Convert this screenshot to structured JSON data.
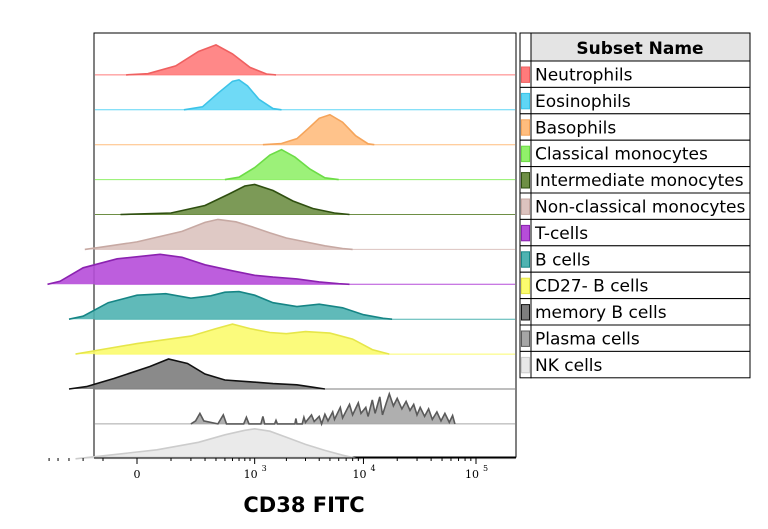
{
  "chart_data": {
    "type": "area",
    "xlabel": "CD38 FITC",
    "x_scale": "biexponential",
    "x_ticks": [
      {
        "value": 0,
        "base": "0",
        "exp": ""
      },
      {
        "value": 1000,
        "base": "10",
        "exp": "3"
      },
      {
        "value": 10000,
        "base": "10",
        "exp": "4"
      },
      {
        "value": 100000,
        "base": "10",
        "exp": "5"
      }
    ],
    "legend": {
      "title": "Subset Name",
      "placement": "right"
    },
    "series": [
      {
        "name": "Neutrophils",
        "color": "#ff7b7b",
        "line": "#ef6060",
        "points": [
          [
            -25,
            0
          ],
          [
            25,
            0.04
          ],
          [
            120,
            0.3
          ],
          [
            250,
            0.78
          ],
          [
            400,
            1
          ],
          [
            600,
            0.7
          ],
          [
            900,
            0.25
          ],
          [
            1300,
            0.03
          ],
          [
            1600,
            0
          ]
        ]
      },
      {
        "name": "Eosinophils",
        "color": "#5fd6f5",
        "line": "#3cc3e8",
        "points": [
          [
            160,
            0
          ],
          [
            280,
            0.1
          ],
          [
            420,
            0.55
          ],
          [
            600,
            0.95
          ],
          [
            700,
            1
          ],
          [
            850,
            0.8
          ],
          [
            1100,
            0.35
          ],
          [
            1500,
            0.04
          ],
          [
            1800,
            0
          ]
        ]
      },
      {
        "name": "Basophils",
        "color": "#ffbd7e",
        "line": "#f5a45a",
        "points": [
          [
            1200,
            0
          ],
          [
            1800,
            0.04
          ],
          [
            2500,
            0.2
          ],
          [
            3200,
            0.55
          ],
          [
            4000,
            0.88
          ],
          [
            5000,
            1
          ],
          [
            6500,
            0.75
          ],
          [
            8500,
            0.3
          ],
          [
            11000,
            0.03
          ],
          [
            12500,
            0
          ]
        ]
      },
      {
        "name": "Classical monocytes",
        "color": "#91f06a",
        "line": "#6cdc46",
        "points": [
          [
            500,
            0
          ],
          [
            700,
            0.08
          ],
          [
            1000,
            0.4
          ],
          [
            1400,
            0.82
          ],
          [
            1800,
            1
          ],
          [
            2400,
            0.75
          ],
          [
            3300,
            0.35
          ],
          [
            4500,
            0.06
          ],
          [
            6000,
            0
          ]
        ]
      },
      {
        "name": "Intermediate monocytes",
        "color": "#6e8f45",
        "line": "#2f4f10",
        "points": [
          [
            -40,
            0
          ],
          [
            100,
            0.05
          ],
          [
            300,
            0.3
          ],
          [
            550,
            0.68
          ],
          [
            800,
            0.95
          ],
          [
            1000,
            1
          ],
          [
            1500,
            0.8
          ],
          [
            2300,
            0.45
          ],
          [
            3500,
            0.2
          ],
          [
            5500,
            0.05
          ],
          [
            7500,
            0
          ]
        ]
      },
      {
        "name": "Non-classical monocytes",
        "color": "#dcc3bf",
        "line": "#c7a9a3",
        "points": [
          [
            -190,
            0
          ],
          [
            -120,
            0.06
          ],
          [
            0,
            0.25
          ],
          [
            150,
            0.6
          ],
          [
            300,
            0.9
          ],
          [
            420,
            1
          ],
          [
            650,
            0.92
          ],
          [
            950,
            0.75
          ],
          [
            1400,
            0.55
          ],
          [
            2000,
            0.38
          ],
          [
            3000,
            0.25
          ],
          [
            4500,
            0.12
          ],
          [
            6500,
            0.03
          ],
          [
            8000,
            0
          ]
        ]
      },
      {
        "name": "T-cells",
        "color": "#b64dd9",
        "line": "#8b22b0",
        "points": [
          [
            -520,
            0
          ],
          [
            -380,
            0.1
          ],
          [
            -200,
            0.55
          ],
          [
            -50,
            0.85
          ],
          [
            60,
            1
          ],
          [
            150,
            0.9
          ],
          [
            300,
            0.65
          ],
          [
            600,
            0.45
          ],
          [
            1000,
            0.3
          ],
          [
            1500,
            0.24
          ],
          [
            2500,
            0.18
          ],
          [
            4000,
            0.08
          ],
          [
            6000,
            0.02
          ],
          [
            7500,
            0
          ]
        ]
      },
      {
        "name": "B cells",
        "color": "#4fb3b1",
        "line": "#168585",
        "points": [
          [
            -300,
            0
          ],
          [
            -200,
            0.1
          ],
          [
            -80,
            0.55
          ],
          [
            0,
            0.8
          ],
          [
            80,
            0.85
          ],
          [
            200,
            0.7
          ],
          [
            350,
            0.78
          ],
          [
            500,
            0.9
          ],
          [
            700,
            0.92
          ],
          [
            1000,
            0.8
          ],
          [
            1500,
            0.55
          ],
          [
            2500,
            0.42
          ],
          [
            4000,
            0.5
          ],
          [
            6500,
            0.38
          ],
          [
            10000,
            0.15
          ],
          [
            15000,
            0.03
          ],
          [
            18000,
            0
          ]
        ]
      },
      {
        "name": "CD27- B cells",
        "color": "#fbfb6e",
        "line": "#e6e64a",
        "points": [
          [
            -250,
            0
          ],
          [
            -130,
            0.12
          ],
          [
            0,
            0.35
          ],
          [
            200,
            0.6
          ],
          [
            400,
            0.85
          ],
          [
            600,
            1
          ],
          [
            900,
            0.85
          ],
          [
            1400,
            0.72
          ],
          [
            2000,
            0.68
          ],
          [
            3000,
            0.75
          ],
          [
            5000,
            0.7
          ],
          [
            8000,
            0.5
          ],
          [
            12000,
            0.15
          ],
          [
            17000,
            0
          ]
        ]
      },
      {
        "name": "memory B cells",
        "color": "#7d7d7d",
        "line": "#111111",
        "points": [
          [
            -300,
            0
          ],
          [
            -180,
            0.08
          ],
          [
            -60,
            0.35
          ],
          [
            30,
            0.75
          ],
          [
            90,
            1
          ],
          [
            180,
            0.85
          ],
          [
            300,
            0.5
          ],
          [
            500,
            0.3
          ],
          [
            900,
            0.24
          ],
          [
            1500,
            0.18
          ],
          [
            2500,
            0.14
          ],
          [
            3500,
            0.06
          ],
          [
            4500,
            0
          ]
        ]
      },
      {
        "name": "Plasma cells",
        "color": "#a6a6a6",
        "line": "#5a5a5a",
        "points": [
          [
            200,
            0
          ],
          [
            230,
            0.1
          ],
          [
            260,
            0.35
          ],
          [
            290,
            0.1
          ],
          [
            420,
            0
          ],
          [
            480,
            0.3
          ],
          [
            520,
            0
          ],
          [
            780,
            0
          ],
          [
            830,
            0.22
          ],
          [
            880,
            0
          ],
          [
            1150,
            0
          ],
          [
            1200,
            0.25
          ],
          [
            1250,
            0
          ],
          [
            1550,
            0
          ],
          [
            1600,
            0.12
          ],
          [
            1650,
            0
          ],
          [
            2400,
            0
          ],
          [
            2450,
            0.18
          ],
          [
            2500,
            0
          ],
          [
            2800,
            0
          ],
          [
            2900,
            0.22
          ],
          [
            3000,
            0.05
          ],
          [
            3400,
            0.3
          ],
          [
            3600,
            0.08
          ],
          [
            4000,
            0.25
          ],
          [
            4200,
            0
          ],
          [
            4500,
            0.32
          ],
          [
            4800,
            0.1
          ],
          [
            5300,
            0.4
          ],
          [
            5500,
            0.15
          ],
          [
            6200,
            0.55
          ],
          [
            6500,
            0.2
          ],
          [
            7500,
            0.65
          ],
          [
            8000,
            0.3
          ],
          [
            9000,
            0.7
          ],
          [
            9500,
            0.35
          ],
          [
            10500,
            0.55
          ],
          [
            11000,
            0.25
          ],
          [
            12000,
            0.8
          ],
          [
            12700,
            0.35
          ],
          [
            14000,
            0.9
          ],
          [
            14800,
            0.3
          ],
          [
            16000,
            0.7
          ],
          [
            17000,
            1
          ],
          [
            18500,
            0.6
          ],
          [
            20000,
            0.85
          ],
          [
            22000,
            0.5
          ],
          [
            24000,
            0.75
          ],
          [
            26000,
            0.45
          ],
          [
            28000,
            0.65
          ],
          [
            30000,
            0.3
          ],
          [
            32000,
            0.55
          ],
          [
            35000,
            0.25
          ],
          [
            38000,
            0.5
          ],
          [
            41000,
            0.15
          ],
          [
            45000,
            0.4
          ],
          [
            49000,
            0.1
          ],
          [
            53000,
            0.35
          ],
          [
            58000,
            0.05
          ],
          [
            62000,
            0.28
          ],
          [
            65000,
            0
          ]
        ]
      },
      {
        "name": "NK cells",
        "color": "#e8e8e8",
        "line": "#cccccc",
        "points": [
          [
            -250,
            0
          ],
          [
            -100,
            0.1
          ],
          [
            50,
            0.3
          ],
          [
            250,
            0.55
          ],
          [
            500,
            0.8
          ],
          [
            800,
            0.95
          ],
          [
            1000,
            1
          ],
          [
            1400,
            0.92
          ],
          [
            2000,
            0.72
          ],
          [
            3000,
            0.48
          ],
          [
            4500,
            0.28
          ],
          [
            6500,
            0.12
          ],
          [
            8500,
            0.02
          ],
          [
            9500,
            0
          ]
        ]
      }
    ]
  }
}
